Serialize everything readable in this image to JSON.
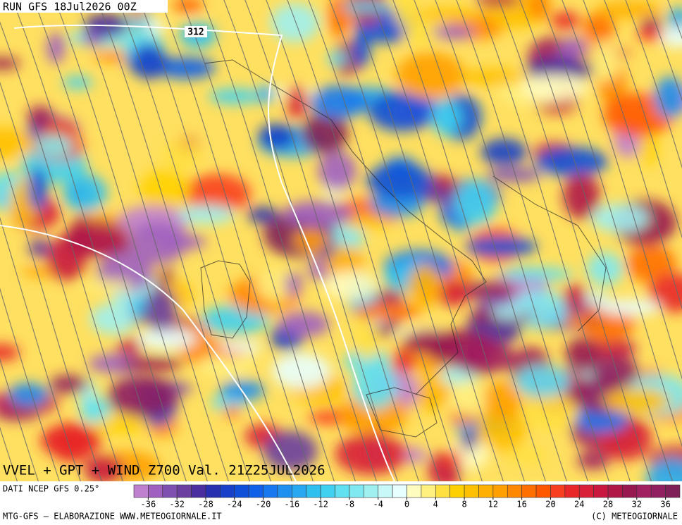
{
  "header": {
    "run": "RUN GFS 18Jul2026 00Z",
    "contour_label": "312",
    "title": "VVEL + GPT + WIND Z700 Val. 21Z25JUL2026",
    "source": "DATI NCEP GFS 0.25°"
  },
  "colorbar": {
    "range": [
      -38,
      38
    ],
    "ticks": [
      -36,
      -32,
      -28,
      -24,
      -20,
      -16,
      -12,
      -8,
      -4,
      0,
      4,
      8,
      12,
      16,
      20,
      24,
      28,
      32,
      36
    ],
    "colors": [
      "#c080d0",
      "#a060c0",
      "#8050b0",
      "#6a3fa0",
      "#4a2ea0",
      "#2830b0",
      "#1840c8",
      "#1050d8",
      "#1060e8",
      "#1878f0",
      "#2090f0",
      "#28a8f0",
      "#30c0f0",
      "#40d0f0",
      "#60e0f0",
      "#80e8f0",
      "#a0f0f0",
      "#c8f8f8",
      "#e8ffff",
      "#fffcc0",
      "#fff080",
      "#ffe040",
      "#ffd000",
      "#ffc000",
      "#ffb000",
      "#ffa000",
      "#ff8800",
      "#ff7000",
      "#ff5800",
      "#f84020",
      "#e82828",
      "#d82038",
      "#c81840",
      "#b01848",
      "#981850",
      "#a02060",
      "#902060",
      "#802058"
    ]
  },
  "footer": {
    "left": "MTG-GFS — ELABORAZIONE WWW.METEOGIORNALE.IT",
    "right": "(C) METEOGIORNALE"
  }
}
